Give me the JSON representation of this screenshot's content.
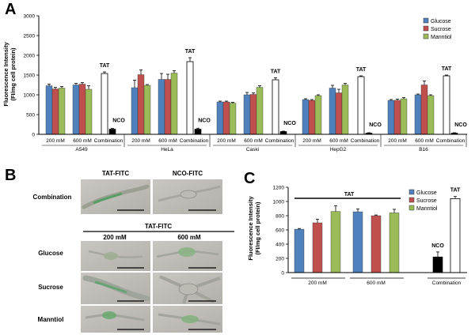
{
  "colors": {
    "glucose": "#4f81bd",
    "sucrose": "#c0504d",
    "mannitol": "#9bbb59",
    "combo_tat": "#ffffff",
    "combo_nco": "#000000"
  },
  "legend": [
    "Glucose",
    "Sucrose",
    "Manntiol"
  ],
  "panel_letters": {
    "a": "A",
    "b": "B",
    "c": "C"
  },
  "chart_data": [
    {
      "type": "bar",
      "panel": "A",
      "ylabel_lines": [
        "Fluorescence Intensity",
        "(FI/mg cell protein)"
      ],
      "ylim": [
        0,
        3000
      ],
      "yticks": [
        "0",
        "500",
        "1000",
        "1500",
        "2000",
        "2500",
        "3000"
      ],
      "sublabels": [
        "200 mM",
        "600 mM",
        "Combination"
      ],
      "series_names": [
        "Glucose",
        "Sucrose",
        "Manntiol"
      ],
      "combination_labels": {
        "tat": "TAT",
        "nco": "NCO"
      },
      "groups": [
        {
          "name": "A549",
          "mM200": [
            1230,
            1150,
            1170
          ],
          "mM200_err": [
            40,
            40,
            40
          ],
          "mM600": [
            1250,
            1270,
            1140
          ],
          "mM600_err": [
            40,
            40,
            90
          ],
          "tat": 1540,
          "tat_err": 40,
          "nco": 130,
          "nco_err": 20
        },
        {
          "name": "HeLa",
          "mM200": [
            1180,
            1510,
            1240
          ],
          "mM200_err": [
            190,
            120,
            20
          ],
          "mM600": [
            1390,
            1390,
            1550
          ],
          "mM600_err": [
            150,
            130,
            60
          ],
          "tat": 1840,
          "tat_err": 100,
          "nco": 130,
          "nco_err": 25
        },
        {
          "name": "Caski",
          "mM200": [
            820,
            820,
            790
          ],
          "mM200_err": [
            20,
            20,
            20
          ],
          "mM600": [
            1000,
            1010,
            1190
          ],
          "mM600_err": [
            60,
            40,
            40
          ],
          "tat": 1380,
          "tat_err": 50,
          "nco": 70,
          "nco_err": 10
        },
        {
          "name": "HepG2",
          "mM200": [
            880,
            860,
            980
          ],
          "mM200_err": [
            20,
            20,
            20
          ],
          "mM600": [
            1170,
            1050,
            1250
          ],
          "mM600_err": [
            70,
            90,
            40
          ],
          "tat": 1460,
          "tat_err": 20,
          "nco": 30,
          "nco_err": 10
        },
        {
          "name": "B16",
          "mM200": [
            860,
            860,
            900
          ],
          "mM200_err": [
            20,
            30,
            30
          ],
          "mM600": [
            1000,
            1250,
            980
          ],
          "mM600_err": [
            20,
            100,
            20
          ],
          "tat": 1480,
          "tat_err": 20,
          "nco": 30,
          "nco_err": 10
        }
      ]
    },
    {
      "type": "bar",
      "panel": "C",
      "ylabel_lines": [
        "Fluorescence Intensity",
        "(FI/mg cell protein)"
      ],
      "ylim": [
        0,
        1200
      ],
      "yticks": [
        "0",
        "200",
        "400",
        "600",
        "800",
        "1000",
        "1200"
      ],
      "tat_label": "TAT",
      "series_names": [
        "Glucose",
        "Sucrose",
        "Manntiol"
      ],
      "groups": [
        {
          "name": "200 mM",
          "values": [
            610,
            700,
            860
          ],
          "err": [
            10,
            50,
            80
          ]
        },
        {
          "name": "600 mM",
          "values": [
            855,
            800,
            840
          ],
          "err": [
            40,
            10,
            50
          ]
        }
      ],
      "combination": {
        "name": "Combination",
        "nco": 220,
        "nco_err": 70,
        "tat": 1040,
        "tat_err": 30,
        "nco_label": "NCO",
        "tat_label": "TAT"
      }
    }
  ],
  "panel_b": {
    "top_headers": [
      "TAT-FITC",
      "NCO-FITC"
    ],
    "top_row_label": "Combination",
    "sub_header": "TAT-FITC",
    "col_headers": [
      "200 mM",
      "600 mM"
    ],
    "row_labels": [
      "Glucose",
      "Sucrose",
      "Manntiol"
    ]
  }
}
